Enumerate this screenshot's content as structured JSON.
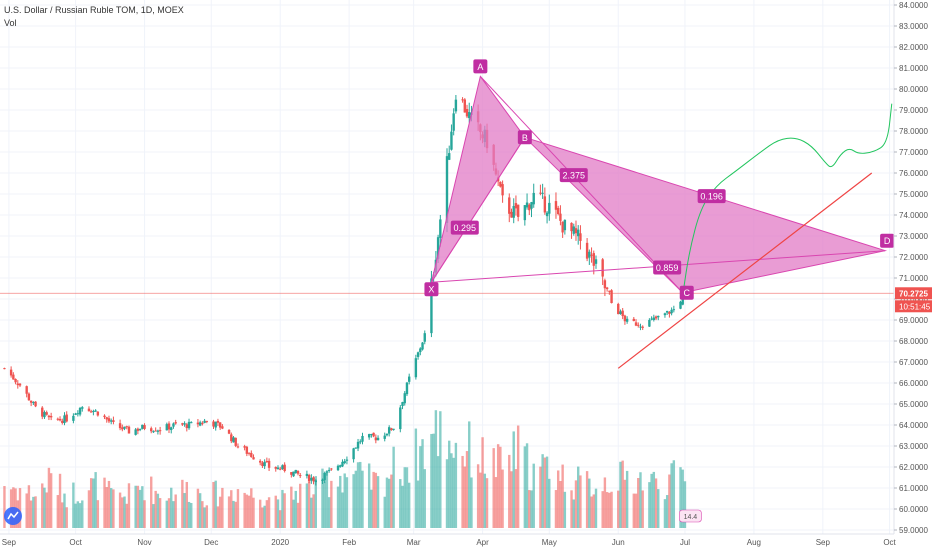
{
  "chart_data": {
    "type": "candlestick",
    "title": "U.S. Dollar / Russian Ruble TOM, 1D, MOEX",
    "volume_label": "Vol",
    "ylim": [
      59.0,
      84.0
    ],
    "y_ticks": [
      "59.0000",
      "60.0000",
      "61.0000",
      "62.0000",
      "63.0000",
      "64.0000",
      "65.0000",
      "66.0000",
      "67.0000",
      "68.0000",
      "69.0000",
      "70.0000",
      "71.0000",
      "72.0000",
      "73.0000",
      "74.0000",
      "75.0000",
      "76.0000",
      "77.0000",
      "78.0000",
      "79.0000",
      "80.0000",
      "81.0000",
      "82.0000",
      "83.0000",
      "84.0000"
    ],
    "x_ticks": [
      "Sep",
      "Oct",
      "Nov",
      "Dec",
      "2020",
      "Feb",
      "Mar",
      "Apr",
      "May",
      "Jun",
      "Jul",
      "Aug",
      "Sep",
      "Oct"
    ],
    "x_tick_dates": [
      "2019-09-01",
      "2019-10-01",
      "2019-11-01",
      "2019-12-01",
      "2020-01-01",
      "2020-02-01",
      "2020-03-01",
      "2020-04-01",
      "2020-05-01",
      "2020-06-01",
      "2020-07-01",
      "2020-08-01",
      "2020-09-01",
      "2020-10-01"
    ],
    "x_range": [
      "2019-08-28",
      "2020-10-03"
    ],
    "last_price": "70.2725",
    "countdown": "10:51:45",
    "bottom_badge": "14.4",
    "colors": {
      "up": "#26a69a",
      "down": "#ef5350",
      "pattern": "#d946b0",
      "pattern_fill": "#e27bc6",
      "projection": "#22c55e",
      "trendline": "#ef4444",
      "price_line": "#ef5350"
    },
    "closes": [
      [
        "2019-08-30",
        66.7
      ],
      [
        "2019-09-06",
        65.9
      ],
      [
        "2019-09-13",
        64.8
      ],
      [
        "2019-09-20",
        64.2
      ],
      [
        "2019-09-27",
        64.3
      ],
      [
        "2019-10-04",
        64.9
      ],
      [
        "2019-10-11",
        64.6
      ],
      [
        "2019-10-18",
        64.0
      ],
      [
        "2019-10-25",
        63.7
      ],
      [
        "2019-11-01",
        63.9
      ],
      [
        "2019-11-08",
        63.8
      ],
      [
        "2019-11-15",
        64.0
      ],
      [
        "2019-11-22",
        64.0
      ],
      [
        "2019-11-29",
        64.2
      ],
      [
        "2019-12-06",
        63.9
      ],
      [
        "2019-12-13",
        63.0
      ],
      [
        "2019-12-20",
        62.5
      ],
      [
        "2019-12-27",
        62.0
      ],
      [
        "2020-01-03",
        61.9
      ],
      [
        "2020-01-10",
        61.6
      ],
      [
        "2020-01-17",
        61.4
      ],
      [
        "2020-01-24",
        61.8
      ],
      [
        "2020-01-31",
        62.5
      ],
      [
        "2020-02-07",
        63.4
      ],
      [
        "2020-02-14",
        63.4
      ],
      [
        "2020-02-21",
        63.9
      ],
      [
        "2020-02-28",
        66.2
      ],
      [
        "2020-03-06",
        68.3
      ],
      [
        "2020-03-13",
        73.8
      ],
      [
        "2020-03-20",
        79.9
      ],
      [
        "2020-03-27",
        78.5
      ],
      [
        "2020-04-03",
        77.5
      ],
      [
        "2020-04-10",
        74.6
      ],
      [
        "2020-04-17",
        73.9
      ],
      [
        "2020-04-24",
        74.9
      ],
      [
        "2020-05-01",
        74.4
      ],
      [
        "2020-05-08",
        73.4
      ],
      [
        "2020-05-15",
        72.8
      ],
      [
        "2020-05-22",
        71.5
      ],
      [
        "2020-05-29",
        69.8
      ],
      [
        "2020-06-05",
        68.9
      ],
      [
        "2020-06-12",
        68.8
      ],
      [
        "2020-06-19",
        69.1
      ],
      [
        "2020-06-26",
        69.5
      ],
      [
        "2020-07-01",
        70.3
      ]
    ],
    "volume": [
      [
        "2019-08-30",
        0.4
      ],
      [
        "2019-09-06",
        0.35
      ],
      [
        "2019-09-13",
        0.3
      ],
      [
        "2019-09-20",
        0.45
      ],
      [
        "2019-09-27",
        0.3
      ],
      [
        "2019-10-04",
        0.35
      ],
      [
        "2019-10-11",
        0.4
      ],
      [
        "2019-10-18",
        0.28
      ],
      [
        "2019-10-25",
        0.3
      ],
      [
        "2019-11-01",
        0.4
      ],
      [
        "2019-11-08",
        0.3
      ],
      [
        "2019-11-15",
        0.35
      ],
      [
        "2019-11-22",
        0.35
      ],
      [
        "2019-11-29",
        0.3
      ],
      [
        "2019-12-06",
        0.32
      ],
      [
        "2019-12-13",
        0.35
      ],
      [
        "2019-12-20",
        0.3
      ],
      [
        "2019-12-27",
        0.3
      ],
      [
        "2020-01-03",
        0.25
      ],
      [
        "2020-01-10",
        0.35
      ],
      [
        "2020-01-17",
        0.35
      ],
      [
        "2020-01-24",
        0.45
      ],
      [
        "2020-01-31",
        0.5
      ],
      [
        "2020-02-07",
        0.45
      ],
      [
        "2020-02-14",
        0.4
      ],
      [
        "2020-02-21",
        0.55
      ],
      [
        "2020-02-28",
        0.6
      ],
      [
        "2020-03-06",
        0.75
      ],
      [
        "2020-03-13",
        0.9
      ],
      [
        "2020-03-20",
        0.75
      ],
      [
        "2020-03-27",
        0.7
      ],
      [
        "2020-04-03",
        0.6
      ],
      [
        "2020-04-10",
        0.55
      ],
      [
        "2020-04-17",
        0.7
      ],
      [
        "2020-04-24",
        0.5
      ],
      [
        "2020-05-01",
        0.55
      ],
      [
        "2020-05-08",
        0.45
      ],
      [
        "2020-05-15",
        0.4
      ],
      [
        "2020-05-22",
        0.4
      ],
      [
        "2020-05-29",
        0.45
      ],
      [
        "2020-06-05",
        0.45
      ],
      [
        "2020-06-12",
        0.45
      ],
      [
        "2020-06-19",
        0.4
      ],
      [
        "2020-06-26",
        0.45
      ],
      [
        "2020-07-01",
        0.5
      ]
    ],
    "pattern_points": [
      {
        "label": "X",
        "date": "2020-03-09",
        "price": 70.8
      },
      {
        "label": "A",
        "date": "2020-03-31",
        "price": 80.6
      },
      {
        "label": "B",
        "date": "2020-04-20",
        "price": 77.7
      },
      {
        "label": "C",
        "date": "2020-06-30",
        "price": 70.3
      },
      {
        "label": "D",
        "date": "2020-09-29",
        "price": 72.3
      }
    ],
    "ratios": [
      {
        "text": "0.295",
        "date": "2020-03-24",
        "price": 73.4
      },
      {
        "text": "2.375",
        "date": "2020-05-12",
        "price": 75.9
      },
      {
        "text": "0.196",
        "date": "2020-07-13",
        "price": 74.9
      },
      {
        "text": "0.859",
        "date": "2020-06-23",
        "price": 71.5
      }
    ],
    "projection": [
      [
        "2020-06-30",
        70.2
      ],
      [
        "2020-07-03",
        72.3
      ],
      [
        "2020-07-08",
        74.3
      ],
      [
        "2020-07-15",
        75.4
      ],
      [
        "2020-07-24",
        76.1
      ],
      [
        "2020-08-04",
        77.0
      ],
      [
        "2020-08-12",
        77.6
      ],
      [
        "2020-08-20",
        77.7
      ],
      [
        "2020-08-27",
        77.3
      ],
      [
        "2020-09-02",
        76.5
      ],
      [
        "2020-09-05",
        76.2
      ],
      [
        "2020-09-09",
        76.9
      ],
      [
        "2020-09-13",
        77.2
      ],
      [
        "2020-09-17",
        76.9
      ],
      [
        "2020-09-24",
        77.0
      ],
      [
        "2020-09-30",
        77.4
      ],
      [
        "2020-10-02",
        79.3
      ]
    ],
    "trendline": [
      [
        "2020-06-01",
        66.7
      ],
      [
        "2020-09-23",
        76.0
      ]
    ],
    "price_line": 70.2725
  }
}
